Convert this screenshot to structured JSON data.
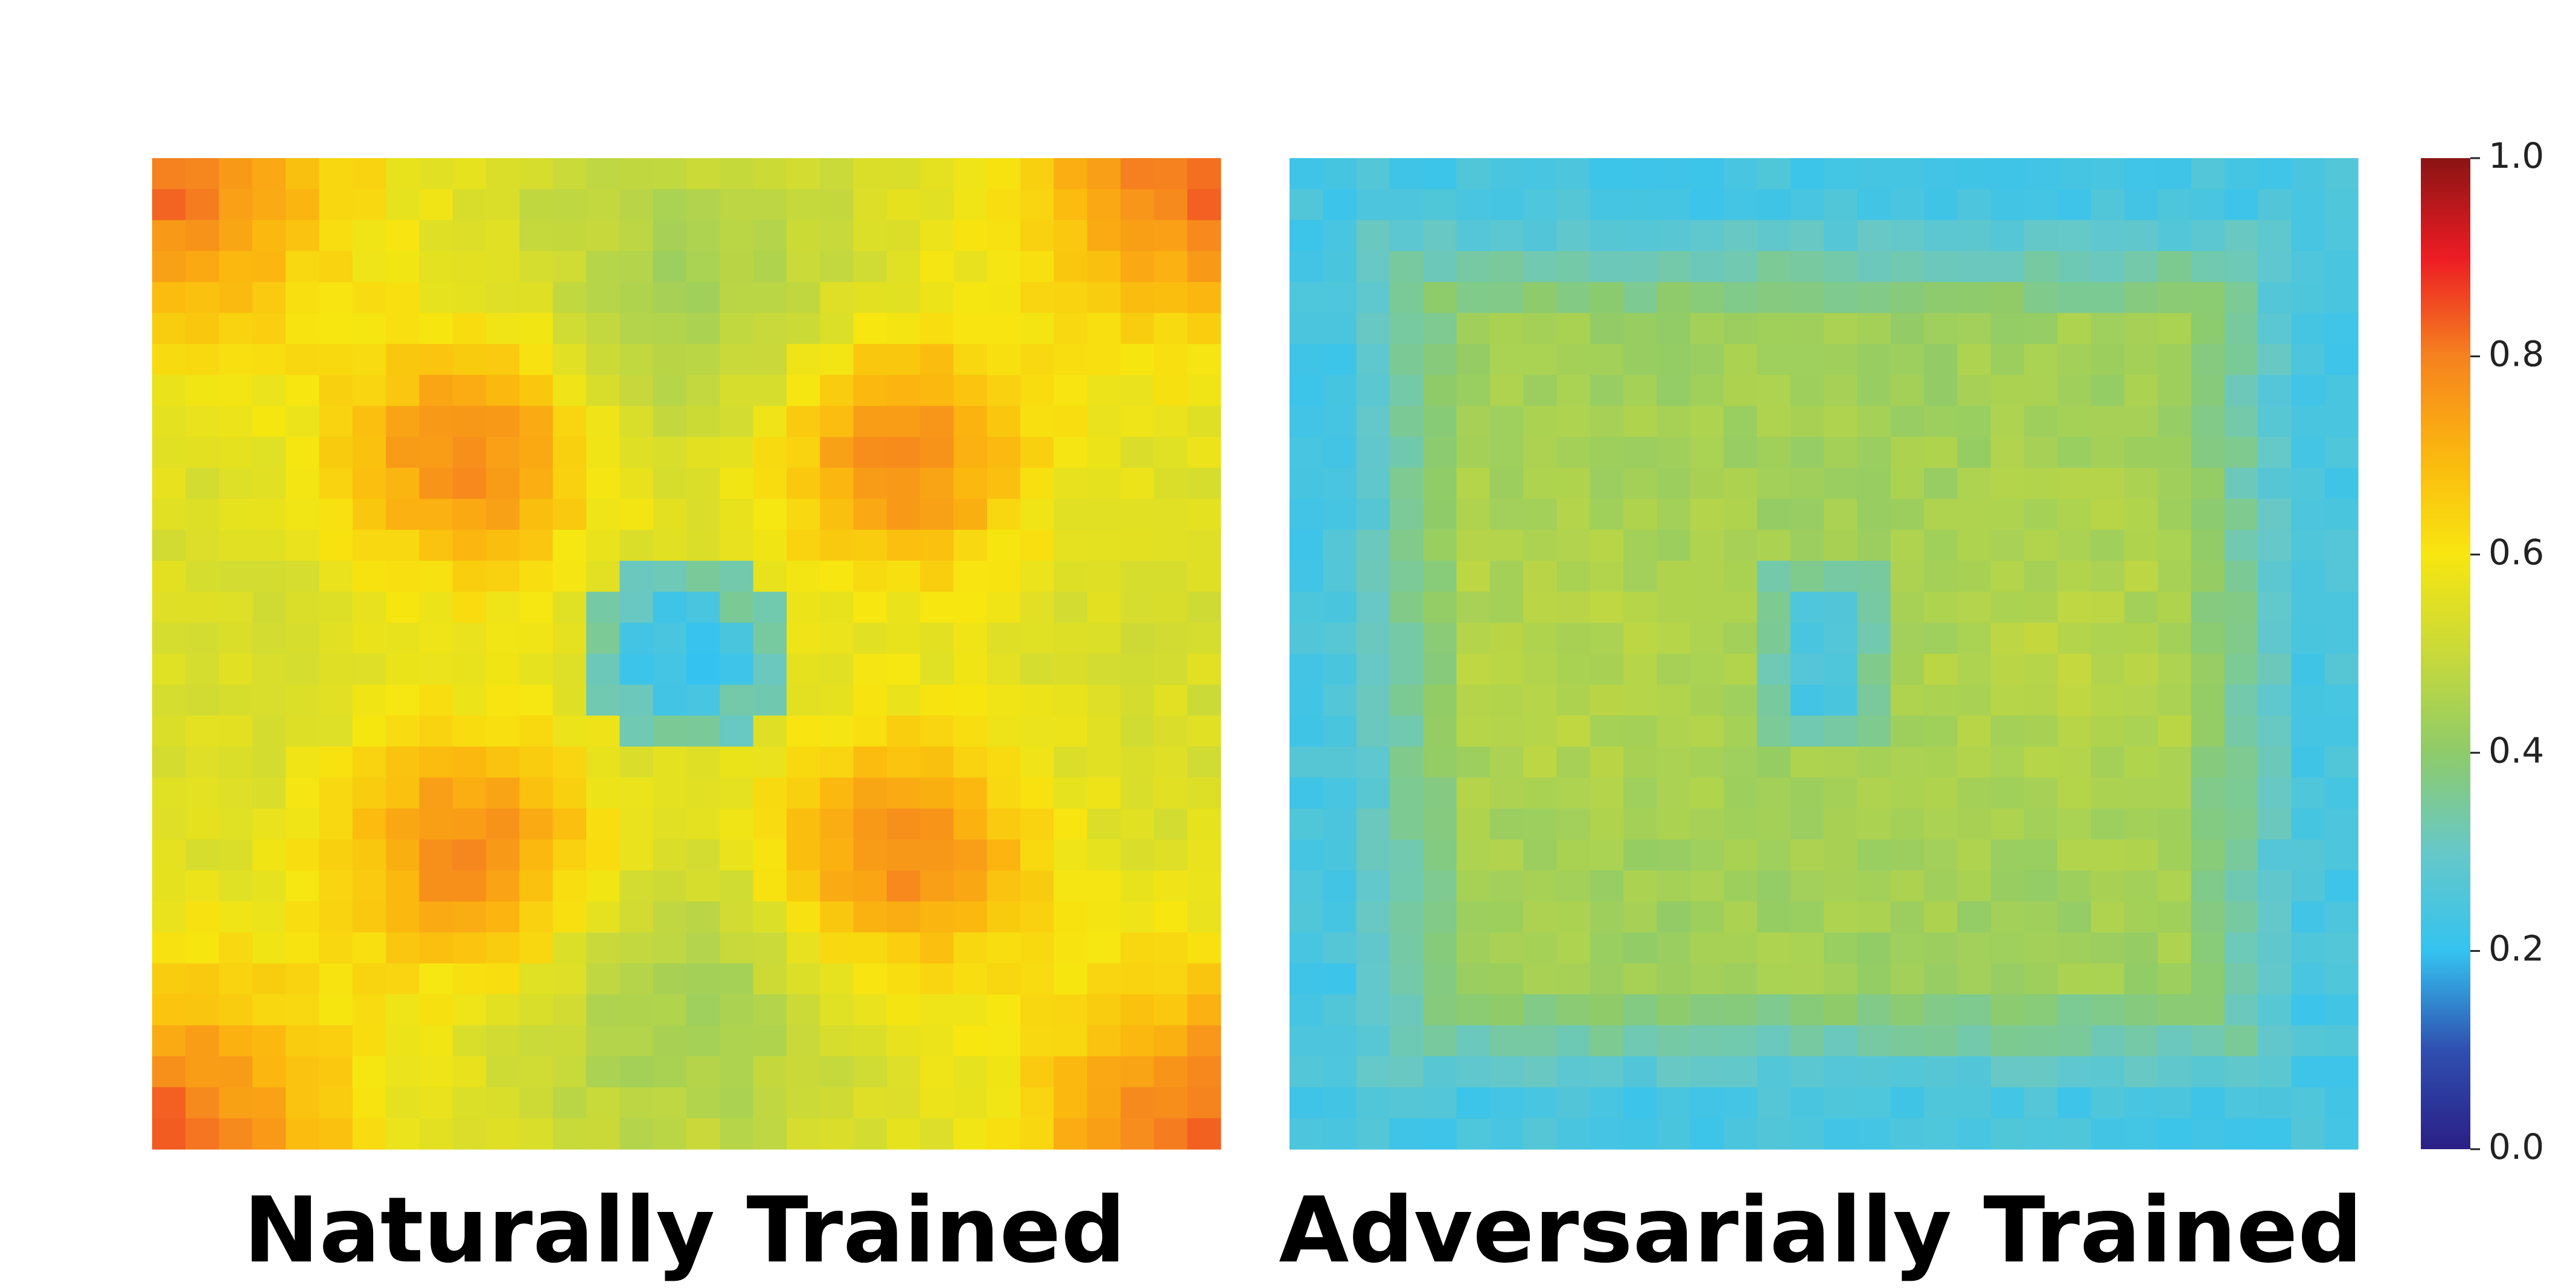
{
  "chart_data": [
    {
      "type": "heatmap",
      "title": "Naturally Trained",
      "grid_size": 32,
      "pattern": "natural",
      "value_range": [
        0,
        1
      ]
    },
    {
      "type": "heatmap",
      "title": "Adversarially Trained",
      "grid_size": 32,
      "pattern": "adversarial",
      "value_range": [
        0,
        1
      ]
    }
  ],
  "colorbar": {
    "range": [
      0.0,
      1.0
    ],
    "ticks": [
      "0.0",
      "0.2",
      "0.4",
      "0.6",
      "0.8",
      "1.0"
    ],
    "colormap": "jet",
    "colormap_stops": [
      "#2a1f86",
      "#2f4fb0",
      "#34c3f0",
      "#66c8c8",
      "#8ecb6a",
      "#c8d93a",
      "#f7e610",
      "#fbb70f",
      "#f6821f",
      "#ec1c24",
      "#8b1414"
    ]
  }
}
